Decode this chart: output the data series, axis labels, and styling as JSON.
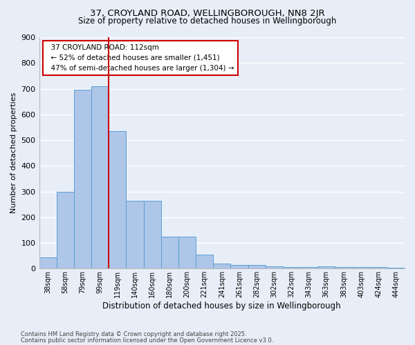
{
  "title1": "37, CROYLAND ROAD, WELLINGBOROUGH, NN8 2JR",
  "title2": "Size of property relative to detached houses in Wellingborough",
  "xlabel": "Distribution of detached houses by size in Wellingborough",
  "ylabel": "Number of detached properties",
  "categories": [
    "38sqm",
    "58sqm",
    "79sqm",
    "99sqm",
    "119sqm",
    "140sqm",
    "160sqm",
    "180sqm",
    "200sqm",
    "221sqm",
    "241sqm",
    "261sqm",
    "282sqm",
    "302sqm",
    "322sqm",
    "343sqm",
    "363sqm",
    "383sqm",
    "403sqm",
    "424sqm",
    "444sqm"
  ],
  "values": [
    45,
    300,
    695,
    710,
    535,
    265,
    265,
    125,
    125,
    55,
    20,
    15,
    15,
    10,
    5,
    5,
    10,
    5,
    5,
    5,
    3
  ],
  "bar_color": "#aec6e8",
  "bar_edge_color": "#5a9fd4",
  "bg_color": "#e8eef8",
  "grid_color": "#ffffff",
  "vline_color": "#cc0000",
  "annotation_text": "  37 CROYLAND ROAD: 112sqm\n  ← 52% of detached houses are smaller (1,451)\n  47% of semi-detached houses are larger (1,304) →",
  "annotation_box_color": "#ffffff",
  "annotation_box_edge": "#cc0000",
  "footer1": "Contains HM Land Registry data © Crown copyright and database right 2025.",
  "footer2": "Contains public sector information licensed under the Open Government Licence v3.0.",
  "ylim": [
    0,
    900
  ],
  "yticks": [
    0,
    100,
    200,
    300,
    400,
    500,
    600,
    700,
    800,
    900
  ]
}
